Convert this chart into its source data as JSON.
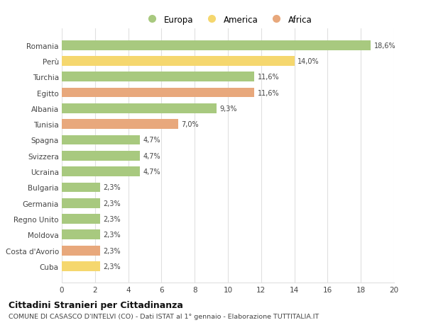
{
  "categories": [
    "Romania",
    "Perù",
    "Turchia",
    "Egitto",
    "Albania",
    "Tunisia",
    "Spagna",
    "Svizzera",
    "Ucraina",
    "Bulgaria",
    "Germania",
    "Regno Unito",
    "Moldova",
    "Costa d'Avorio",
    "Cuba"
  ],
  "values": [
    18.6,
    14.0,
    11.6,
    11.6,
    9.3,
    7.0,
    4.7,
    4.7,
    4.7,
    2.3,
    2.3,
    2.3,
    2.3,
    2.3,
    2.3
  ],
  "labels": [
    "18,6%",
    "14,0%",
    "11,6%",
    "11,6%",
    "9,3%",
    "7,0%",
    "4,7%",
    "4,7%",
    "4,7%",
    "2,3%",
    "2,3%",
    "2,3%",
    "2,3%",
    "2,3%",
    "2,3%"
  ],
  "continent": [
    "Europa",
    "America",
    "Europa",
    "Africa",
    "Europa",
    "Africa",
    "Europa",
    "Europa",
    "Europa",
    "Europa",
    "Europa",
    "Europa",
    "Europa",
    "Africa",
    "America"
  ],
  "colors": {
    "Europa": "#a8c97f",
    "America": "#f5d76e",
    "Africa": "#e8a87c"
  },
  "title": "Cittadini Stranieri per Cittadinanza",
  "subtitle": "COMUNE DI CASASCO D'INTELVI (CO) - Dati ISTAT al 1° gennaio - Elaborazione TUTTITALIA.IT",
  "xlim": [
    0,
    20
  ],
  "xticks": [
    0,
    2,
    4,
    6,
    8,
    10,
    12,
    14,
    16,
    18,
    20
  ],
  "background_color": "#ffffff",
  "grid_color": "#e0e0e0",
  "bar_height": 0.62
}
